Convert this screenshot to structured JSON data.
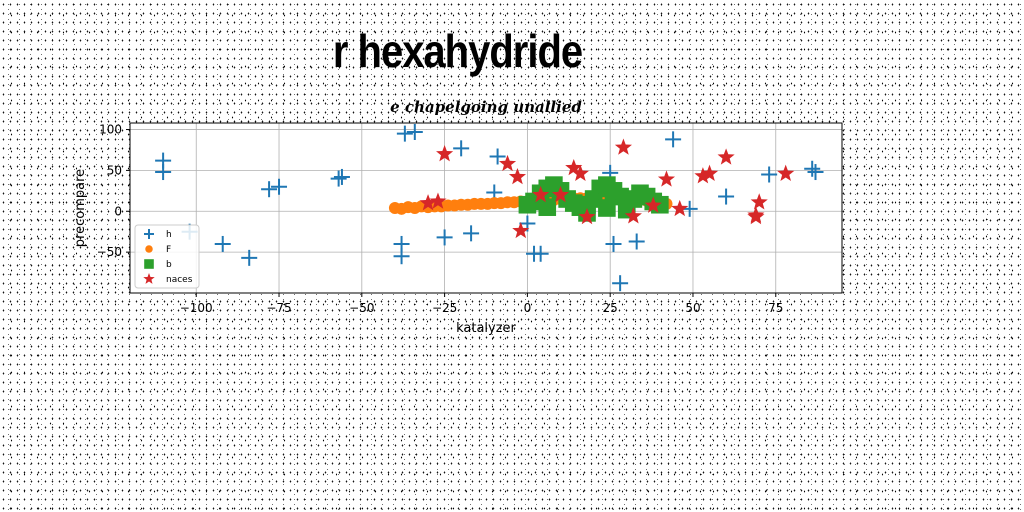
{
  "banner_title": "r hexahydride",
  "chart_data": {
    "type": "scatter",
    "title": "e chapelgoing unallied",
    "xlabel": "katalyzer",
    "ylabel": "precompare",
    "xlim": [
      -120,
      95
    ],
    "ylim": [
      -100,
      108
    ],
    "xticks": [
      -100,
      -75,
      -50,
      -25,
      0,
      25,
      50,
      75
    ],
    "xtick_labels": [
      "−100",
      "−75",
      "−50",
      "−25",
      "0",
      "25",
      "50",
      "75"
    ],
    "yticks": [
      -50,
      0,
      50,
      100
    ],
    "ytick_labels": [
      "−50",
      "0",
      "50",
      "100"
    ],
    "grid": true,
    "legend_position": "lower-left",
    "series": [
      {
        "name": "h",
        "marker": "plus",
        "color": "#1f77b4",
        "points": [
          [
            -110,
            62
          ],
          [
            -110,
            48
          ],
          [
            -102,
            -25
          ],
          [
            -92,
            -40
          ],
          [
            -84,
            -57
          ],
          [
            -78,
            27
          ],
          [
            -75,
            30
          ],
          [
            -57,
            40
          ],
          [
            -56,
            42
          ],
          [
            -38,
            -40
          ],
          [
            -38,
            -55
          ],
          [
            -37,
            95
          ],
          [
            -34,
            97
          ],
          [
            -25,
            -32
          ],
          [
            -20,
            77
          ],
          [
            -17,
            -27
          ],
          [
            -10,
            23
          ],
          [
            -9,
            67
          ],
          [
            0,
            -15
          ],
          [
            2,
            -52
          ],
          [
            4,
            -52
          ],
          [
            25,
            47
          ],
          [
            26,
            -40
          ],
          [
            28,
            -88
          ],
          [
            33,
            -37
          ],
          [
            44,
            88
          ],
          [
            49,
            3
          ],
          [
            60,
            18
          ],
          [
            73,
            45
          ],
          [
            86,
            52
          ],
          [
            87,
            48
          ]
        ]
      },
      {
        "name": "F",
        "marker": "circle",
        "color": "#ff7f0e",
        "points": [
          [
            -40,
            4
          ],
          [
            -38,
            3
          ],
          [
            -36,
            5
          ],
          [
            -34,
            4
          ],
          [
            -32,
            6
          ],
          [
            -30,
            5
          ],
          [
            -28,
            6
          ],
          [
            -26,
            6
          ],
          [
            -24,
            7
          ],
          [
            -22,
            7
          ],
          [
            -20,
            8
          ],
          [
            -18,
            8
          ],
          [
            -16,
            9
          ],
          [
            -14,
            9
          ],
          [
            -12,
            9
          ],
          [
            -10,
            10
          ],
          [
            -8,
            10
          ],
          [
            -6,
            11
          ],
          [
            -4,
            11
          ],
          [
            -2,
            12
          ],
          [
            0,
            12
          ],
          [
            2,
            13
          ],
          [
            4,
            13
          ],
          [
            6,
            14
          ],
          [
            8,
            14
          ],
          [
            10,
            15
          ],
          [
            12,
            15
          ],
          [
            14,
            16
          ],
          [
            16,
            16
          ],
          [
            18,
            16
          ],
          [
            20,
            17
          ],
          [
            22,
            17
          ],
          [
            24,
            17
          ],
          [
            26,
            17
          ],
          [
            28,
            16
          ],
          [
            30,
            16
          ],
          [
            32,
            15
          ],
          [
            34,
            14
          ],
          [
            36,
            13
          ],
          [
            38,
            12
          ],
          [
            40,
            10
          ],
          [
            42,
            9
          ]
        ]
      },
      {
        "name": "b",
        "marker": "square",
        "color": "#2ca02c",
        "points": [
          [
            0,
            8
          ],
          [
            2,
            12
          ],
          [
            4,
            22
          ],
          [
            6,
            28
          ],
          [
            8,
            32
          ],
          [
            10,
            25
          ],
          [
            12,
            15
          ],
          [
            14,
            10
          ],
          [
            16,
            5
          ],
          [
            18,
            8
          ],
          [
            20,
            15
          ],
          [
            22,
            28
          ],
          [
            24,
            32
          ],
          [
            26,
            25
          ],
          [
            28,
            18
          ],
          [
            30,
            10
          ],
          [
            32,
            15
          ],
          [
            34,
            22
          ],
          [
            36,
            18
          ],
          [
            38,
            12
          ],
          [
            40,
            8
          ],
          [
            6,
            5
          ],
          [
            18,
            -2
          ],
          [
            24,
            4
          ],
          [
            30,
            2
          ]
        ]
      },
      {
        "name": "naces",
        "marker": "star",
        "color": "#d62728",
        "points": [
          [
            -30,
            10
          ],
          [
            -27,
            12
          ],
          [
            -25,
            70
          ],
          [
            -6,
            58
          ],
          [
            -3,
            42
          ],
          [
            -2,
            -24
          ],
          [
            4,
            20
          ],
          [
            10,
            20
          ],
          [
            14,
            53
          ],
          [
            16,
            46
          ],
          [
            18,
            -7
          ],
          [
            29,
            78
          ],
          [
            32,
            -6
          ],
          [
            38,
            7
          ],
          [
            42,
            39
          ],
          [
            46,
            3
          ],
          [
            53,
            43
          ],
          [
            55,
            46
          ],
          [
            60,
            66
          ],
          [
            69,
            -7
          ],
          [
            69,
            -5
          ],
          [
            70,
            11
          ],
          [
            78,
            46
          ]
        ]
      }
    ]
  }
}
